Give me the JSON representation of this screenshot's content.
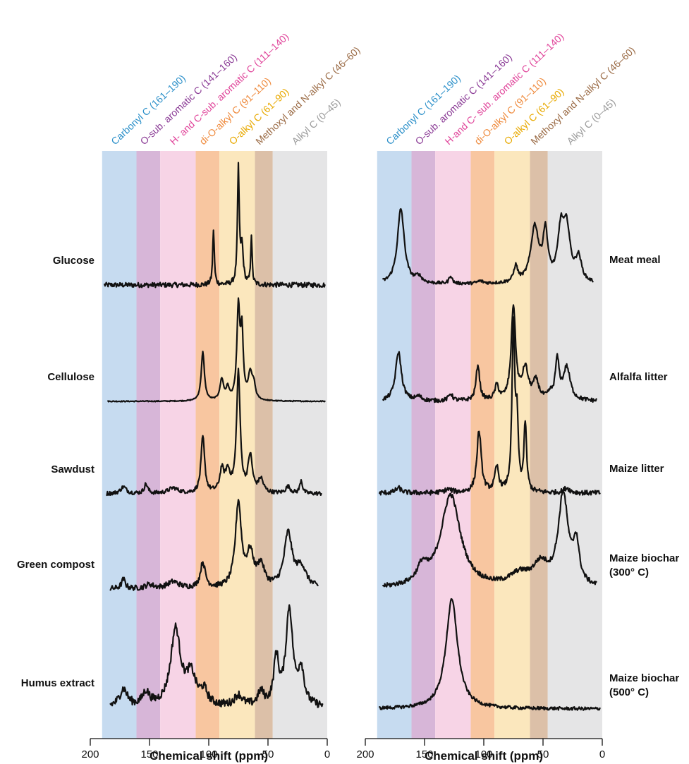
{
  "chart_data": [
    {
      "type": "line",
      "panel": "left",
      "xlabel": "Chemical shift (ppm)",
      "xlim": [
        200,
        0
      ],
      "x_ticks": [
        200,
        150,
        100,
        50,
        0
      ],
      "regions": [
        {
          "label": "Carbonyl C (161–190)",
          "from": 190,
          "to": 161,
          "color": "#c6dbf0",
          "label_color": "#2a8fc9"
        },
        {
          "label": "O-sub. aromatic C (141–160)",
          "from": 161,
          "to": 141,
          "color": "#d7b6d8",
          "label_color": "#8a3a95"
        },
        {
          "label": "H- and C-sub. aromatic C (111–140)",
          "from": 141,
          "to": 111,
          "color": "#f7d4e6",
          "label_color": "#e0449a"
        },
        {
          "label": "di-O-alkyl C (91–110)",
          "from": 111,
          "to": 91,
          "color": "#f8c6a0",
          "label_color": "#ef8a3c"
        },
        {
          "label": "O-alkyl C (61–90)",
          "from": 91,
          "to": 61,
          "color": "#fbe7bd",
          "label_color": "#e8a900"
        },
        {
          "label": "Methoxyl and N-alkyl C (46–60)",
          "from": 61,
          "to": 46,
          "color": "#dcc0a8",
          "label_color": "#9a6a44"
        },
        {
          "label": "Alkyl C (0–45)",
          "from": 46,
          "to": 0,
          "color": "#e5e5e6",
          "label_color": "#9a9a9a"
        }
      ],
      "series": [
        {
          "name": "Glucose",
          "x_range": [
            188,
            2
          ],
          "peaks": [
            [
              96,
              0.45,
              0.8
            ],
            [
              75,
              0.93,
              0.9
            ],
            [
              72,
              0.3,
              1.3
            ],
            [
              64,
              0.4,
              0.7
            ]
          ],
          "noise": 0.02
        },
        {
          "name": "Cellulose",
          "x_range": [
            185,
            2
          ],
          "peaks": [
            [
              105,
              0.42,
              1.6
            ],
            [
              89,
              0.18,
              1.8
            ],
            [
              84,
              0.1,
              1.5
            ],
            [
              75,
              0.78,
              1.5
            ],
            [
              72,
              0.55,
              1.3
            ],
            [
              65,
              0.22,
              2.0
            ],
            [
              62,
              0.12,
              1.6
            ]
          ],
          "noise": 0.004
        },
        {
          "name": "Sawdust",
          "x_range": [
            186,
            5
          ],
          "peaks": [
            [
              172,
              0.05,
              3
            ],
            [
              153,
              0.07,
              1.8
            ],
            [
              130,
              0.04,
              5
            ],
            [
              105,
              0.42,
              1.8
            ],
            [
              89,
              0.16,
              2
            ],
            [
              84,
              0.15,
              2.5
            ],
            [
              75,
              0.9,
              1.8
            ],
            [
              65,
              0.27,
              2.2
            ],
            [
              56,
              0.1,
              2.5
            ],
            [
              33,
              0.05,
              2.5
            ],
            [
              22,
              0.1,
              1.3
            ]
          ],
          "noise": 0.015
        },
        {
          "name": "Green compost",
          "x_range": [
            183,
            8
          ],
          "peaks": [
            [
              172,
              0.07,
              2
            ],
            [
              150,
              0.03,
              4
            ],
            [
              130,
              0.05,
              6
            ],
            [
              105,
              0.19,
              2.5
            ],
            [
              75,
              0.63,
              3
            ],
            [
              65,
              0.24,
              3.5
            ],
            [
              56,
              0.16,
              3.5
            ],
            [
              33,
              0.4,
              4
            ],
            [
              22,
              0.15,
              5
            ]
          ],
          "noise": 0.02
        },
        {
          "name": "Humus extract",
          "x_range": [
            183,
            4
          ],
          "peaks": [
            [
              172,
              0.13,
              4
            ],
            [
              153,
              0.1,
              3.5
            ],
            [
              128,
              0.57,
              5
            ],
            [
              115,
              0.22,
              5
            ],
            [
              104,
              0.1,
              3.5
            ],
            [
              75,
              0.08,
              4
            ],
            [
              56,
              0.1,
              3
            ],
            [
              43,
              0.35,
              2.5
            ],
            [
              32,
              0.72,
              3.5
            ],
            [
              22,
              0.26,
              3
            ]
          ],
          "noise": 0.03
        }
      ]
    },
    {
      "type": "line",
      "panel": "right",
      "xlabel": "Chemical shift (ppm)",
      "xlim": [
        200,
        0
      ],
      "x_ticks": [
        200,
        150,
        100,
        50,
        0
      ],
      "regions": [
        {
          "label": "Carbonyl C (161–190)",
          "from": 190,
          "to": 161,
          "color": "#c6dbf0",
          "label_color": "#2a8fc9"
        },
        {
          "label": "O-sub. aromatic C (141–160)",
          "from": 161,
          "to": 141,
          "color": "#d7b6d8",
          "label_color": "#8a3a95"
        },
        {
          "label": "H-and C- sub. aromatic C (111–140)",
          "from": 141,
          "to": 111,
          "color": "#f7d4e6",
          "label_color": "#e0449a"
        },
        {
          "label": "di-O-alkyl C (91–110)",
          "from": 111,
          "to": 91,
          "color": "#f8c6a0",
          "label_color": "#ef8a3c"
        },
        {
          "label": "O-alkyl C (61–90)",
          "from": 91,
          "to": 61,
          "color": "#fbe7bd",
          "label_color": "#e8a900"
        },
        {
          "label": "Methoxyl and N-alkyl C (46–60)",
          "from": 61,
          "to": 46,
          "color": "#dcc0a8",
          "label_color": "#9a6a44"
        },
        {
          "label": "Alkyl C (0–45)",
          "from": 46,
          "to": 0,
          "color": "#e5e5e6",
          "label_color": "#9a9a9a"
        }
      ],
      "series": [
        {
          "name": "Meat meal",
          "x_range": [
            185,
            8
          ],
          "peaks": [
            [
              170,
              0.95,
              3.5
            ],
            [
              155,
              0.08,
              3
            ],
            [
              128,
              0.1,
              1.5
            ],
            [
              103,
              0.03,
              3
            ],
            [
              73,
              0.2,
              2
            ],
            [
              57,
              0.7,
              4
            ],
            [
              48,
              0.6,
              2.5
            ],
            [
              35,
              0.6,
              3
            ],
            [
              30,
              0.65,
              3.5
            ],
            [
              20,
              0.3,
              3
            ]
          ],
          "noise": 0.02
        },
        {
          "name": "Alfalfa litter",
          "x_range": [
            185,
            5
          ],
          "peaks": [
            [
              172,
              0.48,
              3
            ],
            [
              155,
              0.04,
              3
            ],
            [
              128,
              0.07,
              2
            ],
            [
              105,
              0.35,
              1.8
            ],
            [
              89,
              0.14,
              2
            ],
            [
              75,
              0.92,
              2.2
            ],
            [
              65,
              0.3,
              3
            ],
            [
              56,
              0.18,
              3
            ],
            [
              44,
              0.05,
              2
            ],
            [
              38,
              0.38,
              2
            ],
            [
              30,
              0.32,
              3.5
            ]
          ],
          "noise": 0.02
        },
        {
          "name": "Maize litter",
          "x_range": [
            188,
            2
          ],
          "peaks": [
            [
              172,
              0.03,
              3
            ],
            [
              130,
              0.02,
              4
            ],
            [
              104,
              0.38,
              2.2
            ],
            [
              89,
              0.15,
              2
            ],
            [
              75,
              1.0,
              1.4
            ],
            [
              72,
              0.4,
              1.3
            ],
            [
              65,
              0.42,
              1.3
            ],
            [
              30,
              0.03,
              3
            ]
          ],
          "noise": 0.015
        },
        {
          "name": "Maize biochar (300° C)",
          "x_range": [
            185,
            5
          ],
          "peaks": [
            [
              152,
              0.14,
              5
            ],
            [
              128,
              0.8,
              10
            ],
            [
              70,
              0.1,
              10
            ],
            [
              52,
              0.18,
              8
            ],
            [
              33,
              0.78,
              5
            ],
            [
              22,
              0.34,
              3
            ]
          ],
          "noise": 0.02
        },
        {
          "name": "Maize biochar (500° C)",
          "x_range": [
            188,
            2
          ],
          "peaks": [
            [
              127,
              1.0,
              6
            ]
          ],
          "noise": 0.015
        }
      ]
    }
  ]
}
